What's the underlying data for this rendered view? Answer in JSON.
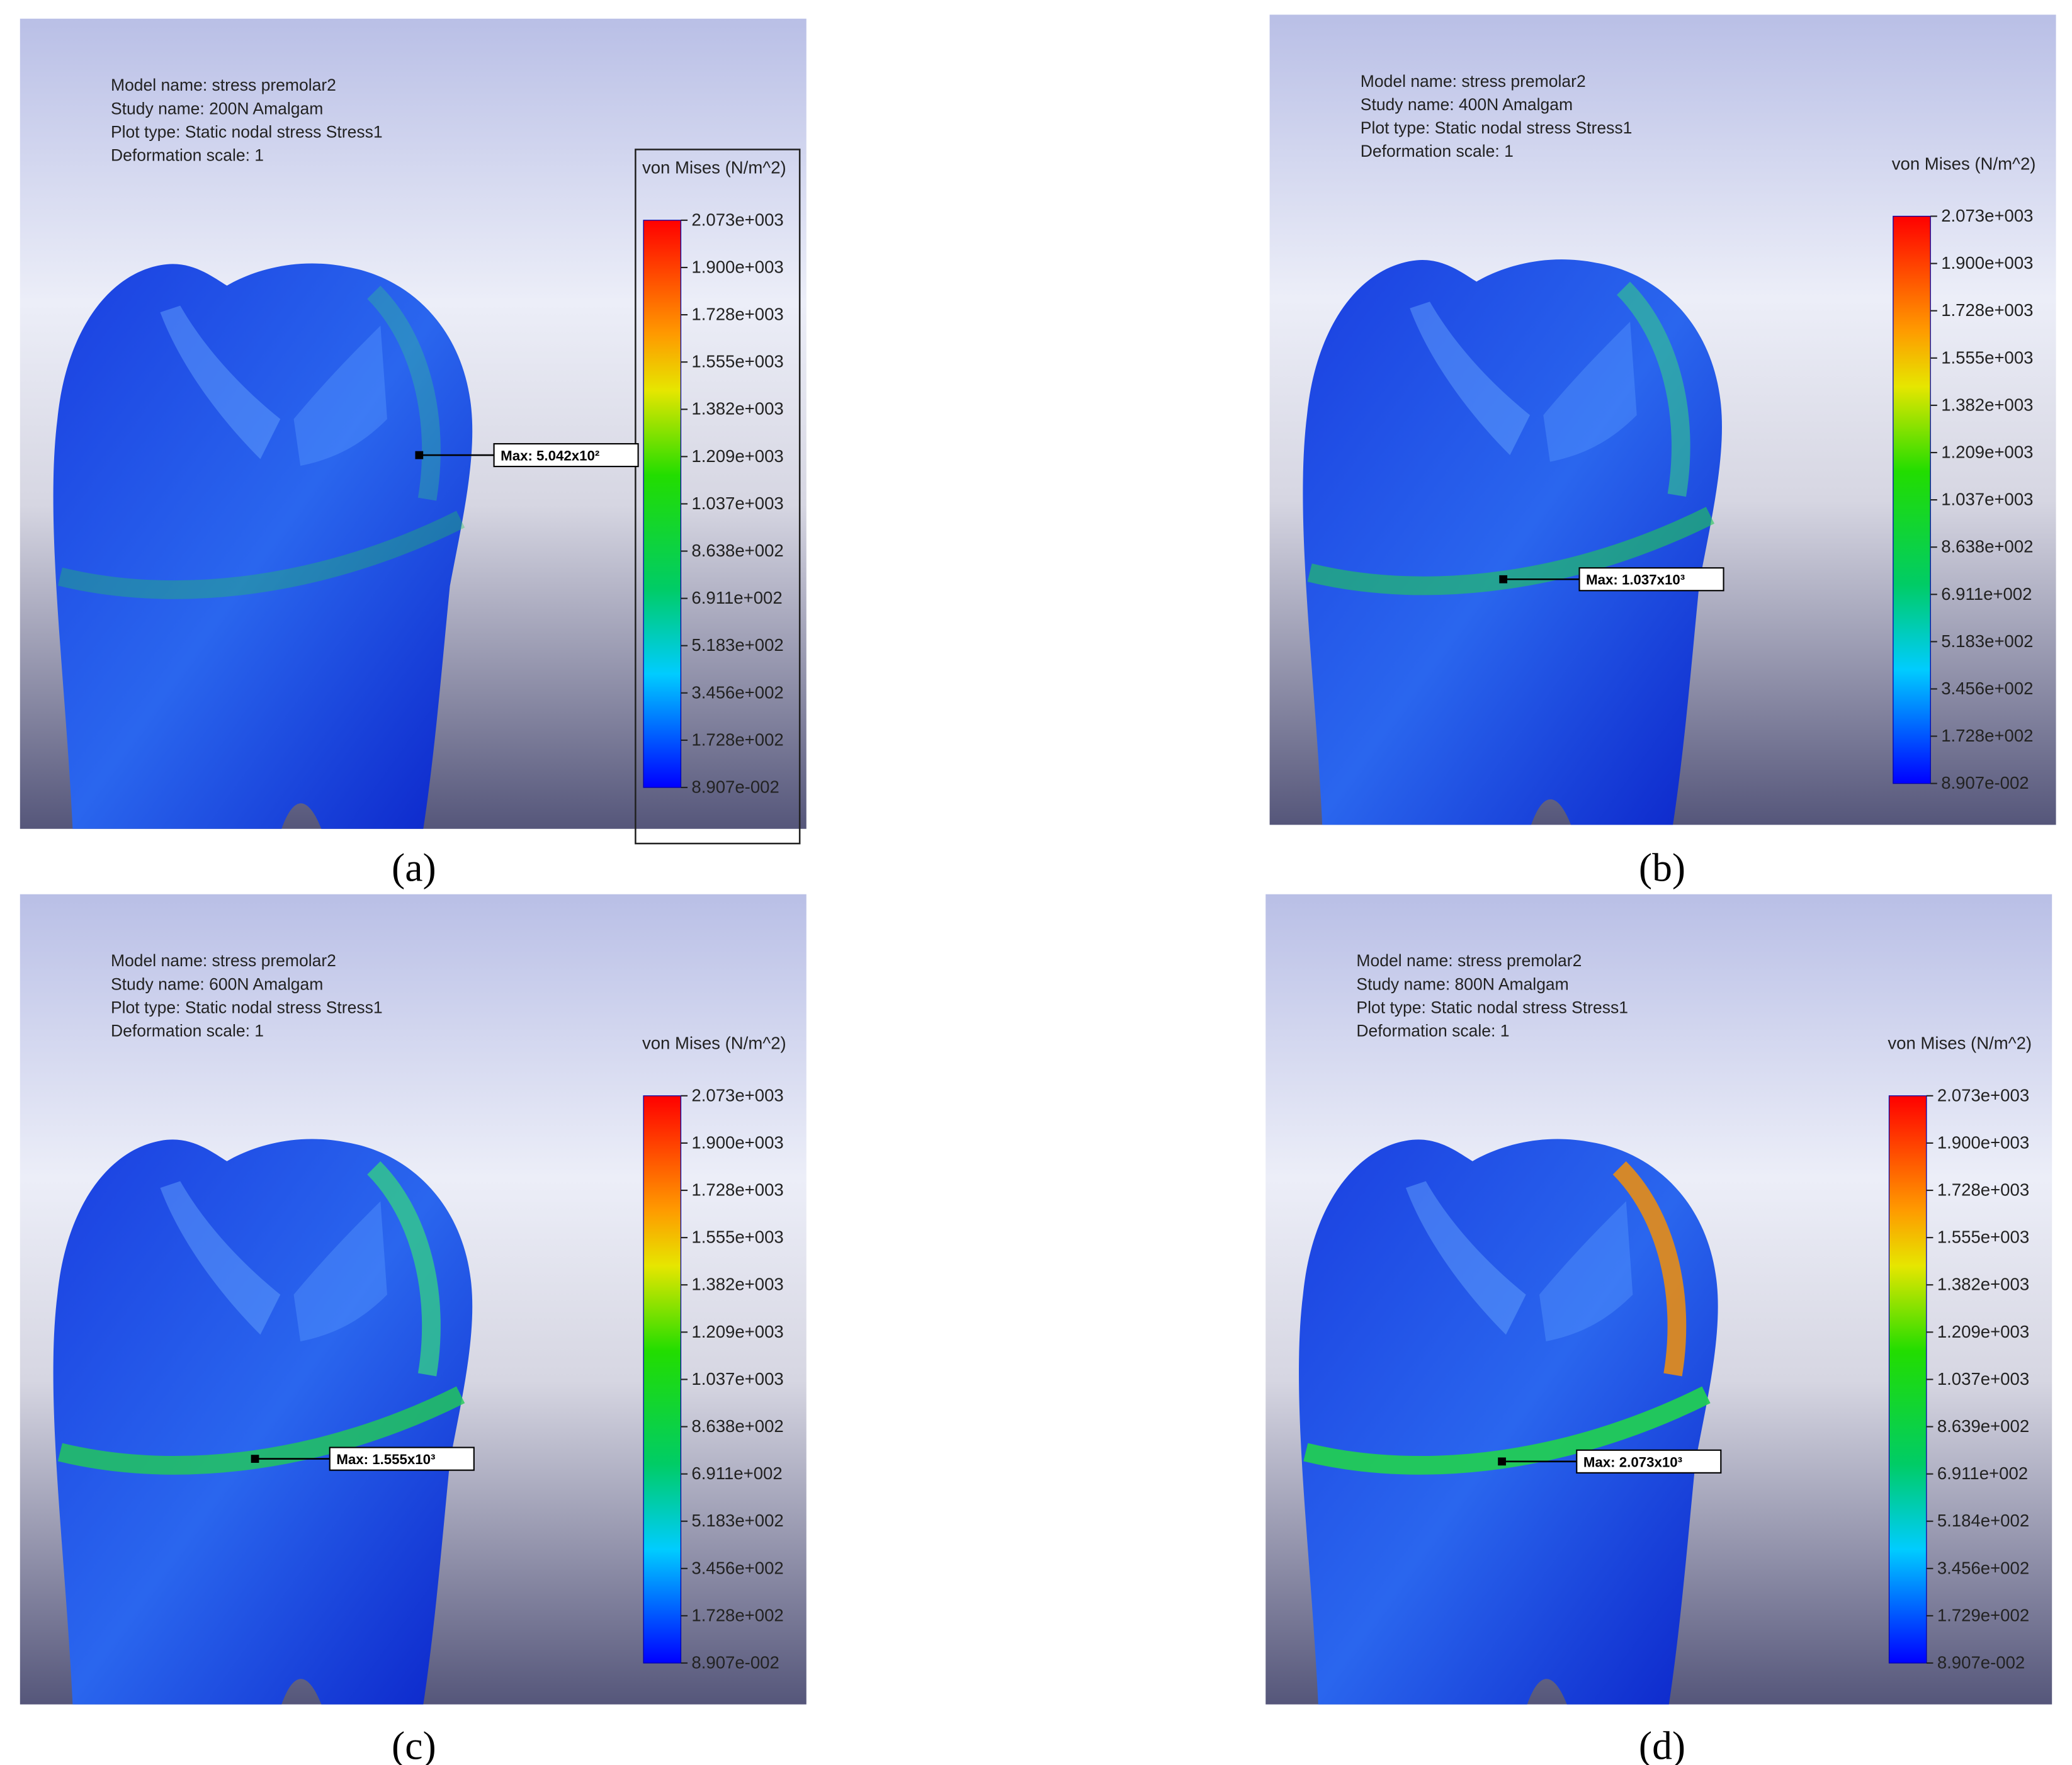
{
  "panels": [
    {
      "caption": "(a)",
      "info": [
        "Model name: stress premolar2",
        "Study name: 200N Amalgam",
        "Plot type: Static nodal stress Stress1",
        "Deformation scale: 1"
      ],
      "legend_title": "von Mises (N/m^2)",
      "legend_ticks": [
        "2.073e+003",
        "1.900e+003",
        "1.728e+003",
        "1.555e+003",
        "1.382e+003",
        "1.209e+003",
        "1.037e+003",
        "8.638e+002",
        "6.911e+002",
        "5.183e+002",
        "3.456e+002",
        "1.728e+002",
        "8.907e-002"
      ],
      "max_label": "Max: 5.042x10²"
    },
    {
      "caption": "(b)",
      "info": [
        "Model name: stress premolar2",
        "Study name: 400N Amalgam",
        "Plot type: Static nodal stress Stress1",
        "Deformation scale: 1"
      ],
      "legend_title": "von Mises (N/m^2)",
      "legend_ticks": [
        "2.073e+003",
        "1.900e+003",
        "1.728e+003",
        "1.555e+003",
        "1.382e+003",
        "1.209e+003",
        "1.037e+003",
        "8.638e+002",
        "6.911e+002",
        "5.183e+002",
        "3.456e+002",
        "1.728e+002",
        "8.907e-002"
      ],
      "max_label": "Max: 1.037x10³"
    },
    {
      "caption": "(c)",
      "info": [
        "Model name: stress premolar2",
        "Study name: 600N Amalgam",
        "Plot type: Static nodal stress Stress1",
        "Deformation scale: 1"
      ],
      "legend_title": "von Mises (N/m^2)",
      "legend_ticks": [
        "2.073e+003",
        "1.900e+003",
        "1.728e+003",
        "1.555e+003",
        "1.382e+003",
        "1.209e+003",
        "1.037e+003",
        "8.638e+002",
        "6.911e+002",
        "5.183e+002",
        "3.456e+002",
        "1.728e+002",
        "8.907e-002"
      ],
      "max_label": "Max: 1.555x10³"
    },
    {
      "caption": "(d)",
      "info": [
        "Model name: stress premolar2",
        "Study name: 800N Amalgam",
        "Plot type: Static nodal stress Stress1",
        "Deformation scale: 1"
      ],
      "legend_title": "von Mises (N/m^2)",
      "legend_ticks": [
        "2.073e+003",
        "1.900e+003",
        "1.728e+003",
        "1.555e+003",
        "1.382e+003",
        "1.209e+003",
        "1.037e+003",
        "8.639e+002",
        "6.911e+002",
        "5.184e+002",
        "3.456e+002",
        "1.729e+002",
        "8.907e-002"
      ],
      "max_label": "Max: 2.073x10³"
    }
  ]
}
